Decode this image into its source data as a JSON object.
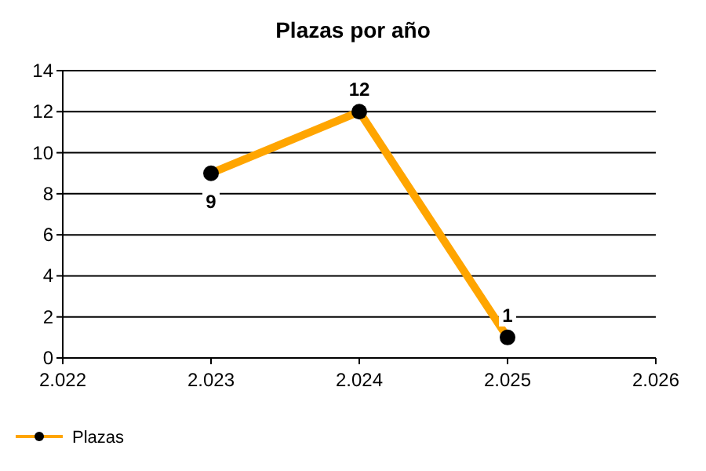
{
  "chart_data": {
    "type": "line",
    "title": "Plazas por año",
    "x": [
      2023,
      2024,
      2025
    ],
    "series": [
      {
        "name": "Plazas",
        "color": "#ffa500",
        "values": [
          9,
          12,
          1
        ]
      }
    ],
    "xlim": [
      2022,
      2026
    ],
    "xticks": [
      {
        "value": 2022,
        "label": "2.022"
      },
      {
        "value": 2023,
        "label": "2.023"
      },
      {
        "value": 2024,
        "label": "2.024"
      },
      {
        "value": 2025,
        "label": "2.025"
      },
      {
        "value": 2026,
        "label": "2.026"
      }
    ],
    "ylim": [
      0,
      14
    ],
    "yticks": [
      0,
      2,
      4,
      6,
      8,
      10,
      12,
      14
    ],
    "grid": "y",
    "legend": "bottom left",
    "marker": "circle",
    "line_style": "solid",
    "data_labels": true
  }
}
